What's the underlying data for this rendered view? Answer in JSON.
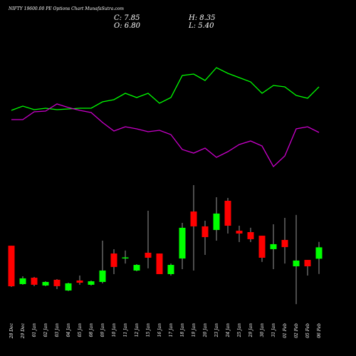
{
  "chart_data": {
    "type": "candlestick",
    "title": "NIFTY 19600.00 PE Options Chart MunafaSutra.com",
    "header": [
      "C: 7.85",
      "H: 8.35",
      "O: 6.80",
      "L: 5.40"
    ],
    "categories": [
      "28 Dec",
      "29 Dec",
      "01 Jan",
      "02 Jan",
      "03 Jan",
      "04 Jan",
      "05 Jan",
      "08 Jan",
      "09 Jan",
      "10 Jan",
      "11 Jan",
      "12 Jan",
      "15 Jan",
      "16 Jan",
      "17 Jan",
      "18 Jan",
      "19 Jan",
      "20 Jan",
      "23 Jan",
      "24 Jan",
      "25 Jan",
      "29 Jan",
      "30 Jan",
      "31 Jan",
      "01 Feb",
      "02 Feb",
      "05 Feb",
      "06 Feb"
    ],
    "open": [
      8.0,
      4.46,
      5.05,
      4.33,
      4.86,
      3.87,
      4.79,
      4.4,
      4.66,
      7.28,
      6.86,
      5.71,
      7.35,
      7.28,
      5.38,
      6.82,
      11.15,
      9.78,
      9.45,
      12.14,
      9.38,
      9.25,
      8.92,
      7.68,
      8.53,
      6.1,
      6.69,
      6.8
    ],
    "high": [
      8.0,
      5.18,
      5.12,
      4.72,
      4.92,
      4.59,
      5.25,
      4.79,
      8.46,
      7.68,
      7.55,
      6.3,
      11.22,
      7.28,
      6.36,
      10.1,
      13.58,
      10.3,
      12.47,
      12.4,
      9.84,
      9.65,
      8.92,
      9.97,
      10.56,
      10.83,
      6.69,
      8.35
    ],
    "low": [
      4.2,
      4.4,
      4.27,
      4.27,
      4.0,
      3.81,
      4.4,
      4.33,
      4.53,
      5.38,
      6.36,
      5.64,
      5.91,
      5.38,
      5.25,
      5.84,
      5.71,
      7.15,
      8.46,
      9.12,
      8.33,
      8.33,
      6.5,
      5.84,
      6.36,
      2.62,
      5.25,
      5.4
    ],
    "close": [
      4.26,
      4.99,
      4.4,
      4.66,
      4.27,
      4.53,
      4.59,
      4.72,
      5.71,
      6.04,
      6.92,
      6.23,
      6.89,
      5.38,
      6.23,
      9.65,
      9.78,
      8.79,
      10.96,
      9.84,
      9.12,
      8.6,
      6.89,
      8.14,
      7.87,
      6.63,
      6.1,
      7.85
    ],
    "up_color": "#00ff00",
    "down_color": "#ff0000",
    "ylim": [
      0,
      30.64
    ],
    "series": [
      {
        "color": "#00ff00",
        "axis": "y2",
        "values": [
          47.5,
          50.5,
          48,
          49,
          48,
          48.5,
          49,
          49,
          53.5,
          55,
          59.5,
          56.5,
          59.5,
          52.5,
          56.5,
          72,
          73,
          68.5,
          77.5,
          73.5,
          70.5,
          67.5,
          59.5,
          65,
          64,
          58,
          56,
          64
        ]
      },
      {
        "color": "#cc00cc",
        "axis": "y2",
        "values": [
          41,
          41,
          46.5,
          47,
          52,
          49.5,
          47.5,
          46,
          39,
          33,
          36,
          34.5,
          32.5,
          33.5,
          30.5,
          20,
          17.5,
          21,
          14.5,
          18.5,
          23.5,
          26,
          22.5,
          8,
          15.5,
          34.5,
          36,
          32
        ]
      }
    ],
    "y2lim": [
      0,
      100
    ]
  }
}
